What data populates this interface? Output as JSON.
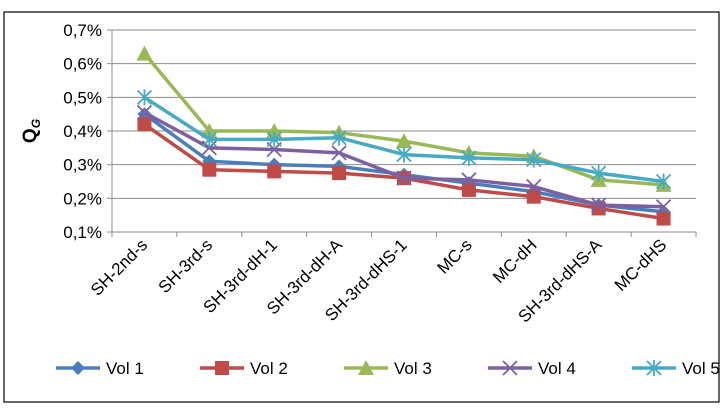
{
  "chart_data": {
    "type": "line",
    "title": "",
    "xlabel": "",
    "ylabel": "Q",
    "ylabel_sub": "G",
    "categories": [
      "SH-2nd-s",
      "SH-3rd-s",
      "SH-3rd-dH-1",
      "SH-3rd-dH-A",
      "SH-3rd-dHS-1",
      "MC-s",
      "MC-dH",
      "SH-3rd-dHS-A",
      "MC-dHS"
    ],
    "ylim": [
      0.1,
      0.7
    ],
    "yticks": [
      0.1,
      0.2,
      0.3,
      0.4,
      0.5,
      0.6,
      0.7
    ],
    "ytick_labels": [
      "0,1%",
      "0,2%",
      "0,3%",
      "0,4%",
      "0,5%",
      "0,6%",
      "0,7%"
    ],
    "grid": true,
    "legend_position": "bottom",
    "series": [
      {
        "name": "Vol 1",
        "color": "#4a7ebb",
        "marker": "diamond",
        "values": [
          0.45,
          0.31,
          0.3,
          0.295,
          0.27,
          0.245,
          0.22,
          0.18,
          0.16
        ]
      },
      {
        "name": "Vol 2",
        "color": "#be4b48",
        "marker": "square",
        "values": [
          0.42,
          0.285,
          0.28,
          0.275,
          0.26,
          0.225,
          0.205,
          0.17,
          0.14
        ]
      },
      {
        "name": "Vol 3",
        "color": "#98b954",
        "marker": "triangle",
        "values": [
          0.63,
          0.4,
          0.4,
          0.395,
          0.37,
          0.335,
          0.325,
          0.255,
          0.24
        ]
      },
      {
        "name": "Vol 4",
        "color": "#7d60a0",
        "marker": "x",
        "values": [
          0.455,
          0.35,
          0.345,
          0.335,
          0.26,
          0.255,
          0.235,
          0.18,
          0.175
        ]
      },
      {
        "name": "Vol 5",
        "color": "#46aac5",
        "marker": "star",
        "values": [
          0.5,
          0.375,
          0.375,
          0.38,
          0.33,
          0.32,
          0.315,
          0.275,
          0.25
        ]
      }
    ]
  }
}
